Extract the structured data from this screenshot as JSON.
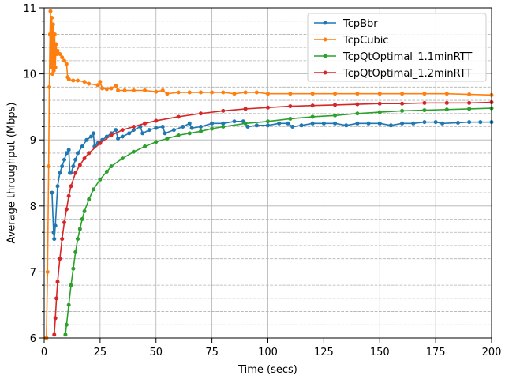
{
  "chart_data": {
    "type": "line",
    "xlabel": "Time (secs)",
    "ylabel": "Average throughput (Mbps)",
    "xlim": [
      0,
      200
    ],
    "ylim": [
      6,
      11
    ],
    "xticks": [
      0,
      25,
      50,
      75,
      100,
      125,
      150,
      175,
      200
    ],
    "yticks": [
      6,
      7,
      8,
      9,
      10,
      11
    ],
    "grid": true,
    "minor_grid_y": true,
    "legend_position": "top-right",
    "series": [
      {
        "name": "TcpBbr",
        "color": "#1f77b4",
        "points": [
          [
            3.5,
            8.2
          ],
          [
            4.2,
            7.6
          ],
          [
            4.5,
            7.5
          ],
          [
            5,
            7.7
          ],
          [
            6,
            8.3
          ],
          [
            7,
            8.5
          ],
          [
            8,
            8.6
          ],
          [
            9,
            8.7
          ],
          [
            10,
            8.8
          ],
          [
            11,
            8.85
          ],
          [
            11.5,
            8.5
          ],
          [
            12,
            8.5
          ],
          [
            13,
            8.6
          ],
          [
            14,
            8.7
          ],
          [
            15,
            8.8
          ],
          [
            17,
            8.9
          ],
          [
            19,
            9.0
          ],
          [
            21,
            9.05
          ],
          [
            22,
            9.1
          ],
          [
            22.5,
            8.9
          ],
          [
            24,
            8.95
          ],
          [
            26,
            9.0
          ],
          [
            28,
            9.05
          ],
          [
            30,
            9.1
          ],
          [
            32,
            9.15
          ],
          [
            33,
            9.02
          ],
          [
            35,
            9.05
          ],
          [
            38,
            9.1
          ],
          [
            40,
            9.15
          ],
          [
            43,
            9.2
          ],
          [
            44,
            9.1
          ],
          [
            47,
            9.15
          ],
          [
            50,
            9.18
          ],
          [
            53,
            9.2
          ],
          [
            54,
            9.1
          ],
          [
            58,
            9.15
          ],
          [
            62,
            9.2
          ],
          [
            65,
            9.25
          ],
          [
            66,
            9.18
          ],
          [
            70,
            9.2
          ],
          [
            75,
            9.25
          ],
          [
            80,
            9.25
          ],
          [
            85,
            9.28
          ],
          [
            89,
            9.28
          ],
          [
            91,
            9.2
          ],
          [
            95,
            9.22
          ],
          [
            100,
            9.22
          ],
          [
            105,
            9.25
          ],
          [
            109,
            9.25
          ],
          [
            111,
            9.2
          ],
          [
            115,
            9.22
          ],
          [
            120,
            9.25
          ],
          [
            125,
            9.25
          ],
          [
            130,
            9.25
          ],
          [
            135,
            9.22
          ],
          [
            140,
            9.25
          ],
          [
            145,
            9.25
          ],
          [
            150,
            9.25
          ],
          [
            155,
            9.22
          ],
          [
            160,
            9.25
          ],
          [
            165,
            9.25
          ],
          [
            170,
            9.27
          ],
          [
            175,
            9.27
          ],
          [
            178,
            9.25
          ],
          [
            185,
            9.26
          ],
          [
            190,
            9.27
          ],
          [
            195,
            9.27
          ],
          [
            200,
            9.27
          ]
        ]
      },
      {
        "name": "TcpCubic",
        "color": "#ff7f0e",
        "points": [
          [
            1,
            6.0
          ],
          [
            1.5,
            7.0
          ],
          [
            2,
            8.6
          ],
          [
            2.3,
            9.8
          ],
          [
            2.6,
            10.6
          ],
          [
            2.8,
            10.95
          ],
          [
            3.1,
            10.1
          ],
          [
            3.4,
            10.85
          ],
          [
            3.7,
            10.0
          ],
          [
            4,
            10.75
          ],
          [
            4.3,
            10.05
          ],
          [
            4.7,
            10.6
          ],
          [
            5,
            10.1
          ],
          [
            5.3,
            10.45
          ],
          [
            5.6,
            10.3
          ],
          [
            6,
            10.35
          ],
          [
            7,
            10.3
          ],
          [
            8,
            10.25
          ],
          [
            9,
            10.2
          ],
          [
            10,
            10.15
          ],
          [
            10.5,
            9.95
          ],
          [
            11,
            9.92
          ],
          [
            13,
            9.9
          ],
          [
            15,
            9.9
          ],
          [
            18,
            9.88
          ],
          [
            20,
            9.85
          ],
          [
            24,
            9.83
          ],
          [
            25,
            9.88
          ],
          [
            26,
            9.78
          ],
          [
            28,
            9.77
          ],
          [
            30,
            9.78
          ],
          [
            32,
            9.82
          ],
          [
            33,
            9.75
          ],
          [
            36,
            9.75
          ],
          [
            40,
            9.75
          ],
          [
            45,
            9.75
          ],
          [
            50,
            9.73
          ],
          [
            53,
            9.75
          ],
          [
            55,
            9.7
          ],
          [
            60,
            9.72
          ],
          [
            65,
            9.72
          ],
          [
            70,
            9.72
          ],
          [
            75,
            9.72
          ],
          [
            80,
            9.72
          ],
          [
            85,
            9.7
          ],
          [
            90,
            9.72
          ],
          [
            95,
            9.72
          ],
          [
            100,
            9.7
          ],
          [
            110,
            9.7
          ],
          [
            120,
            9.7
          ],
          [
            130,
            9.7
          ],
          [
            140,
            9.7
          ],
          [
            150,
            9.7
          ],
          [
            160,
            9.7
          ],
          [
            170,
            9.7
          ],
          [
            180,
            9.7
          ],
          [
            190,
            9.69
          ],
          [
            200,
            9.68
          ]
        ]
      },
      {
        "name": "TcpQtOptimal_1.1minRTT",
        "color": "#2ca02c",
        "points": [
          [
            9.5,
            6.05
          ],
          [
            10,
            6.2
          ],
          [
            11,
            6.5
          ],
          [
            12,
            6.8
          ],
          [
            13,
            7.05
          ],
          [
            14,
            7.3
          ],
          [
            15,
            7.5
          ],
          [
            16,
            7.65
          ],
          [
            17,
            7.8
          ],
          [
            18,
            7.92
          ],
          [
            20,
            8.1
          ],
          [
            22,
            8.25
          ],
          [
            25,
            8.4
          ],
          [
            28,
            8.52
          ],
          [
            30,
            8.6
          ],
          [
            35,
            8.72
          ],
          [
            40,
            8.82
          ],
          [
            45,
            8.9
          ],
          [
            50,
            8.97
          ],
          [
            55,
            9.02
          ],
          [
            60,
            9.07
          ],
          [
            65,
            9.1
          ],
          [
            70,
            9.13
          ],
          [
            75,
            9.17
          ],
          [
            80,
            9.2
          ],
          [
            90,
            9.25
          ],
          [
            100,
            9.28
          ],
          [
            110,
            9.32
          ],
          [
            120,
            9.35
          ],
          [
            130,
            9.37
          ],
          [
            140,
            9.4
          ],
          [
            150,
            9.42
          ],
          [
            160,
            9.44
          ],
          [
            170,
            9.45
          ],
          [
            180,
            9.46
          ],
          [
            190,
            9.47
          ],
          [
            200,
            9.48
          ]
        ]
      },
      {
        "name": "TcpQtOptimal_1.2minRTT",
        "color": "#d62728",
        "points": [
          [
            4.5,
            6.05
          ],
          [
            5,
            6.3
          ],
          [
            5.5,
            6.6
          ],
          [
            6,
            6.85
          ],
          [
            7,
            7.2
          ],
          [
            8,
            7.5
          ],
          [
            9,
            7.75
          ],
          [
            10,
            7.95
          ],
          [
            11,
            8.15
          ],
          [
            12,
            8.3
          ],
          [
            14,
            8.5
          ],
          [
            16,
            8.62
          ],
          [
            18,
            8.72
          ],
          [
            20,
            8.8
          ],
          [
            25,
            8.95
          ],
          [
            30,
            9.07
          ],
          [
            35,
            9.15
          ],
          [
            40,
            9.2
          ],
          [
            45,
            9.25
          ],
          [
            50,
            9.29
          ],
          [
            60,
            9.35
          ],
          [
            70,
            9.4
          ],
          [
            80,
            9.44
          ],
          [
            90,
            9.47
          ],
          [
            100,
            9.49
          ],
          [
            110,
            9.51
          ],
          [
            120,
            9.52
          ],
          [
            130,
            9.53
          ],
          [
            140,
            9.54
          ],
          [
            150,
            9.55
          ],
          [
            160,
            9.55
          ],
          [
            170,
            9.56
          ],
          [
            180,
            9.56
          ],
          [
            190,
            9.56
          ],
          [
            200,
            9.57
          ]
        ]
      }
    ]
  }
}
